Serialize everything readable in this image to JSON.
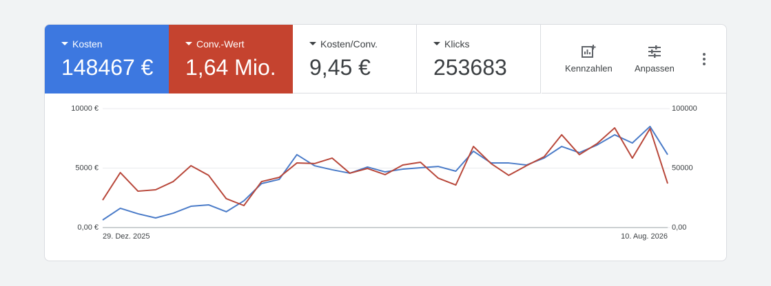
{
  "metrics": [
    {
      "label": "Kosten",
      "value": "148467 €"
    },
    {
      "label": "Conv.-Wert",
      "value": "1,64 Mio."
    },
    {
      "label": "Kosten/Conv.",
      "value": "9,45 €"
    },
    {
      "label": "Klicks",
      "value": "253683"
    }
  ],
  "tools": [
    "Kennzahlen",
    "Anpassen"
  ],
  "chart_data": {
    "type": "line",
    "categories": [
      "29. Dez. 2025",
      null,
      null,
      null,
      null,
      null,
      null,
      null,
      null,
      null,
      null,
      null,
      null,
      null,
      null,
      null,
      null,
      null,
      null,
      null,
      null,
      null,
      null,
      null,
      null,
      null,
      null,
      null,
      null,
      null,
      null,
      null,
      "10. Aug. 2026"
    ],
    "series": [
      {
        "color": "#4a7bc8",
        "values": [
          636,
          1620,
          1160,
          810,
          1210,
          1790,
          1910,
          1330,
          2250,
          3700,
          4050,
          6130,
          5200,
          4860,
          4570,
          5090,
          4680,
          4910,
          5030,
          5140,
          4740,
          6420,
          5430,
          5430,
          5260,
          5840,
          6820,
          6300,
          6940,
          7800,
          7110,
          8500,
          6130
        ]
      },
      {
        "color": "#b8473a",
        "axis": "y2",
        "values": [
          23100,
          46200,
          30600,
          31800,
          38700,
          52000,
          43900,
          24300,
          18500,
          38700,
          42200,
          54300,
          53800,
          58400,
          45700,
          49700,
          44500,
          52600,
          54900,
          41600,
          35800,
          68200,
          53800,
          43900,
          52000,
          59500,
          78000,
          61300,
          70500,
          83800,
          58400,
          83200,
          37000
        ]
      }
    ],
    "ylim": [
      0,
      10000
    ],
    "yticks": [
      {
        "value": 0,
        "label": "0,00 €"
      },
      {
        "value": 5000,
        "label": "5000 €"
      },
      {
        "value": 10000,
        "label": "10000 €"
      }
    ],
    "y2lim": [
      0,
      100000
    ],
    "y2ticks": [
      {
        "value": 0,
        "label": "0,00"
      },
      50000,
      100000
    ],
    "grid": true
  }
}
